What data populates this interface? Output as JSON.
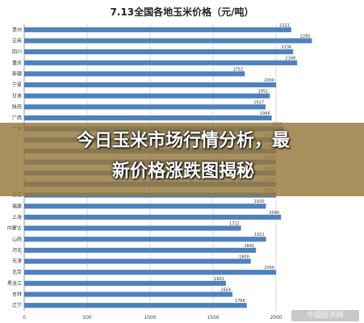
{
  "chart_data": {
    "type": "bar",
    "orientation": "horizontal",
    "title": "7.13全国各地玉米价格（元/吨）",
    "categories": [
      "贵州",
      "云南",
      "四川",
      "重庆",
      "新疆",
      "宁夏",
      "甘肃",
      "陕西",
      "广西",
      "广东",
      "",
      "",
      "",
      "",
      "",
      "浙江",
      "福建",
      "上海",
      "内蒙古",
      "山西",
      "河北",
      "天津",
      "北京",
      "黑龙江",
      "吉林",
      "辽宁"
    ],
    "values": [
      2121,
      2285,
      2136,
      2168,
      1752,
      2000,
      1951,
      1917,
      1966,
      2062,
      2000,
      2000,
      2000,
      2000,
      2000,
      2000,
      1920,
      2040,
      1722,
      1921,
      1841,
      1800,
      2000,
      1602,
      1654,
      1768
    ],
    "xlim": [
      0,
      2500
    ],
    "xticks": [
      0,
      500,
      1000,
      1500,
      2000
    ],
    "grid": true,
    "bar_color": "#4f81bd"
  },
  "overlay": {
    "headline_line1": "今日玉米市场行情分析，最",
    "headline_line2": "新价格涨跌图揭秘"
  },
  "watermark": "中国经济网"
}
